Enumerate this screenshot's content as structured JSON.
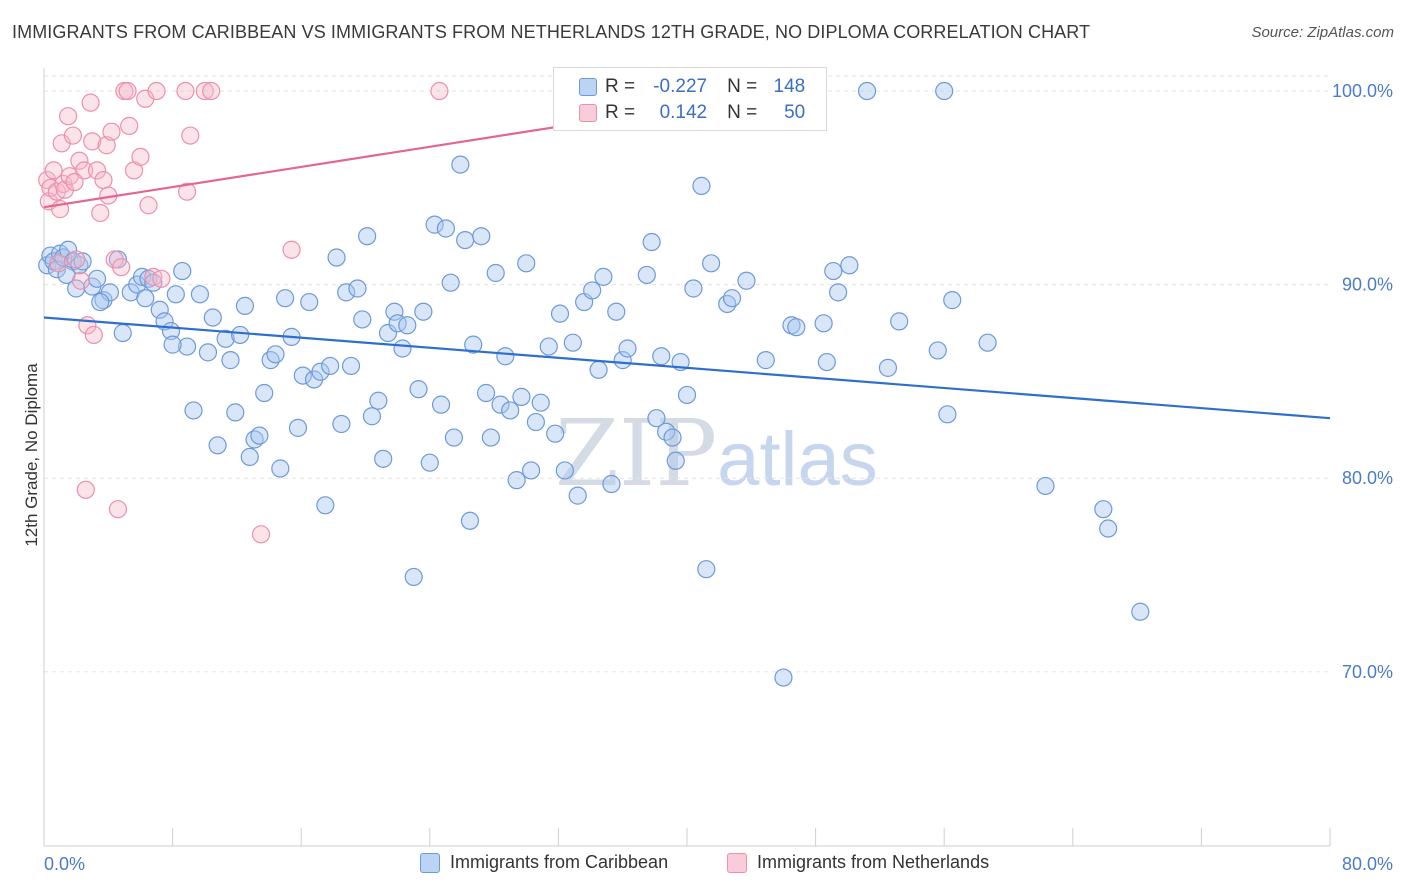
{
  "header": {
    "title": "IMMIGRANTS FROM CARIBBEAN VS IMMIGRANTS FROM NETHERLANDS 12TH GRADE, NO DIPLOMA CORRELATION CHART",
    "source": "Source: ZipAtlas.com"
  },
  "watermark": {
    "zip": "ZIP",
    "atlas": "atlas"
  },
  "legend": {
    "rows": [
      {
        "r_label": "R =",
        "r_value": "-0.227",
        "n_label": "N =",
        "n_value": "148"
      },
      {
        "r_label": "R =",
        "r_value": "0.142",
        "n_label": "N =",
        "n_value": "50"
      }
    ]
  },
  "bottom_legend": {
    "series_a": "Immigrants from Caribbean",
    "series_b": "Immigrants from Netherlands"
  },
  "colors": {
    "caribbean_fill": "#a9c7ef",
    "caribbean_stroke": "#6e9ad8",
    "caribbean_line": "#2e6fce",
    "netherlands_fill": "#f6b8cb",
    "netherlands_stroke": "#ee8fac",
    "netherlands_line": "#e4658f",
    "tick_text": "#4a7cc9",
    "grid": "#e3e3e3"
  },
  "chart_data": {
    "type": "scatter",
    "title": "IMMIGRANTS FROM CARIBBEAN VS IMMIGRANTS FROM NETHERLANDS 12TH GRADE, NO DIPLOMA CORRELATION CHART",
    "xlabel": "",
    "ylabel": "12th Grade, No Diploma",
    "xlim": [
      0,
      80
    ],
    "ylim": [
      61,
      101.5
    ],
    "x_tick_labels": [
      "0.0%",
      "80.0%"
    ],
    "y_ticks": [
      70,
      80,
      90,
      100
    ],
    "y_tick_labels": [
      "70.0%",
      "80.0%",
      "90.0%",
      "100.0%"
    ],
    "grid": true,
    "legend_position": "top-center",
    "series": [
      {
        "name": "Immigrants from Caribbean",
        "R": -0.227,
        "N": 148,
        "trend": {
          "x": [
            0,
            80
          ],
          "y": [
            88.3,
            83.1
          ]
        },
        "points": [
          [
            0.2,
            91.0
          ],
          [
            0.4,
            91.5
          ],
          [
            0.6,
            91.2
          ],
          [
            0.8,
            90.8
          ],
          [
            1.0,
            91.6
          ],
          [
            1.2,
            91.4
          ],
          [
            1.5,
            91.8
          ],
          [
            1.8,
            91.2
          ],
          [
            2.0,
            89.8
          ],
          [
            2.2,
            91.0
          ],
          [
            3.0,
            89.9
          ],
          [
            3.3,
            90.3
          ],
          [
            3.7,
            89.2
          ],
          [
            4.1,
            89.6
          ],
          [
            4.6,
            91.3
          ],
          [
            4.9,
            87.5
          ],
          [
            5.4,
            89.6
          ],
          [
            5.8,
            90.0
          ],
          [
            6.1,
            90.4
          ],
          [
            6.5,
            90.3
          ],
          [
            6.8,
            90.1
          ],
          [
            7.2,
            88.7
          ],
          [
            7.5,
            88.1
          ],
          [
            7.9,
            87.6
          ],
          [
            8.2,
            89.5
          ],
          [
            8.6,
            90.7
          ],
          [
            8.9,
            86.8
          ],
          [
            9.3,
            83.5
          ],
          [
            9.7,
            89.5
          ],
          [
            10.2,
            86.5
          ],
          [
            10.5,
            88.3
          ],
          [
            10.8,
            81.7
          ],
          [
            11.3,
            87.2
          ],
          [
            11.6,
            86.1
          ],
          [
            11.9,
            83.4
          ],
          [
            12.2,
            87.4
          ],
          [
            12.5,
            88.9
          ],
          [
            12.8,
            81.1
          ],
          [
            13.1,
            82.0
          ],
          [
            13.4,
            82.2
          ],
          [
            13.7,
            84.4
          ],
          [
            14.1,
            86.1
          ],
          [
            14.4,
            86.4
          ],
          [
            14.7,
            80.5
          ],
          [
            15.0,
            89.3
          ],
          [
            15.4,
            87.3
          ],
          [
            15.8,
            82.6
          ],
          [
            16.1,
            85.3
          ],
          [
            16.5,
            89.1
          ],
          [
            16.8,
            85.1
          ],
          [
            17.2,
            85.5
          ],
          [
            17.5,
            78.6
          ],
          [
            17.8,
            85.8
          ],
          [
            18.2,
            91.4
          ],
          [
            18.5,
            82.8
          ],
          [
            18.8,
            89.6
          ],
          [
            19.1,
            85.8
          ],
          [
            19.5,
            89.8
          ],
          [
            19.8,
            88.2
          ],
          [
            20.1,
            92.5
          ],
          [
            20.4,
            83.2
          ],
          [
            20.8,
            84.0
          ],
          [
            21.1,
            81.0
          ],
          [
            21.4,
            87.5
          ],
          [
            21.8,
            88.6
          ],
          [
            22.0,
            88.0
          ],
          [
            22.3,
            86.7
          ],
          [
            22.6,
            87.9
          ],
          [
            23.0,
            74.9
          ],
          [
            23.3,
            84.6
          ],
          [
            23.6,
            88.6
          ],
          [
            24.0,
            80.8
          ],
          [
            24.3,
            93.1
          ],
          [
            24.7,
            83.8
          ],
          [
            25.0,
            92.9
          ],
          [
            25.3,
            90.1
          ],
          [
            25.5,
            82.1
          ],
          [
            25.9,
            96.2
          ],
          [
            26.2,
            92.3
          ],
          [
            26.5,
            77.8
          ],
          [
            26.7,
            86.9
          ],
          [
            27.2,
            92.5
          ],
          [
            27.5,
            84.4
          ],
          [
            27.8,
            82.1
          ],
          [
            28.1,
            90.6
          ],
          [
            28.4,
            83.8
          ],
          [
            28.7,
            86.3
          ],
          [
            29.0,
            83.5
          ],
          [
            29.4,
            79.9
          ],
          [
            29.7,
            84.2
          ],
          [
            30.0,
            91.1
          ],
          [
            30.3,
            80.4
          ],
          [
            30.6,
            82.9
          ],
          [
            30.9,
            83.9
          ],
          [
            31.4,
            86.8
          ],
          [
            31.8,
            82.3
          ],
          [
            32.1,
            88.5
          ],
          [
            32.4,
            80.4
          ],
          [
            32.9,
            87.0
          ],
          [
            33.2,
            79.1
          ],
          [
            33.6,
            89.1
          ],
          [
            34.1,
            89.7
          ],
          [
            34.5,
            85.6
          ],
          [
            34.8,
            90.4
          ],
          [
            35.3,
            79.7
          ],
          [
            35.6,
            88.6
          ],
          [
            36.0,
            86.1
          ],
          [
            36.3,
            86.7
          ],
          [
            37.5,
            90.5
          ],
          [
            37.8,
            92.2
          ],
          [
            38.1,
            83.1
          ],
          [
            38.4,
            86.3
          ],
          [
            38.7,
            82.4
          ],
          [
            39.1,
            82.1
          ],
          [
            39.3,
            80.9
          ],
          [
            39.6,
            86.0
          ],
          [
            40.0,
            84.3
          ],
          [
            40.4,
            89.8
          ],
          [
            40.9,
            95.1
          ],
          [
            41.2,
            75.3
          ],
          [
            41.5,
            91.1
          ],
          [
            42.5,
            89.0
          ],
          [
            42.8,
            89.3
          ],
          [
            43.7,
            90.2
          ],
          [
            44.9,
            86.1
          ],
          [
            46.5,
            87.9
          ],
          [
            46.8,
            87.8
          ],
          [
            46.0,
            69.7
          ],
          [
            48.5,
            88.0
          ],
          [
            48.7,
            86.0
          ],
          [
            49.1,
            90.7
          ],
          [
            49.4,
            89.6
          ],
          [
            50.1,
            91.0
          ],
          [
            51.2,
            100.0
          ],
          [
            52.5,
            85.7
          ],
          [
            53.2,
            88.1
          ],
          [
            55.6,
            86.6
          ],
          [
            56.0,
            100.0
          ],
          [
            56.2,
            83.3
          ],
          [
            56.5,
            89.2
          ],
          [
            58.7,
            87.0
          ],
          [
            62.3,
            79.6
          ],
          [
            65.9,
            78.4
          ],
          [
            66.2,
            77.4
          ],
          [
            68.2,
            73.1
          ],
          [
            2.4,
            91.2
          ],
          [
            1.4,
            90.5
          ],
          [
            3.5,
            89.1
          ],
          [
            6.3,
            89.3
          ],
          [
            8.0,
            86.9
          ]
        ]
      },
      {
        "name": "Immigrants from Netherlands",
        "R": 0.142,
        "N": 50,
        "trend": {
          "x": [
            0,
            40
          ],
          "y": [
            94.0,
            99.2
          ]
        },
        "points": [
          [
            0.2,
            95.4
          ],
          [
            0.3,
            94.3
          ],
          [
            0.4,
            95.0
          ],
          [
            0.6,
            95.9
          ],
          [
            0.8,
            94.8
          ],
          [
            1.0,
            93.9
          ],
          [
            1.1,
            97.3
          ],
          [
            1.2,
            95.2
          ],
          [
            1.3,
            94.9
          ],
          [
            1.5,
            98.7
          ],
          [
            1.6,
            95.6
          ],
          [
            1.8,
            97.7
          ],
          [
            2.0,
            91.3
          ],
          [
            2.2,
            96.4
          ],
          [
            2.3,
            90.2
          ],
          [
            2.5,
            95.9
          ],
          [
            2.7,
            87.9
          ],
          [
            2.9,
            99.4
          ],
          [
            3.0,
            97.4
          ],
          [
            3.1,
            87.4
          ],
          [
            3.3,
            95.9
          ],
          [
            3.5,
            93.7
          ],
          [
            3.7,
            95.4
          ],
          [
            3.9,
            97.2
          ],
          [
            4.0,
            94.6
          ],
          [
            4.2,
            97.9
          ],
          [
            4.4,
            91.3
          ],
          [
            4.6,
            78.4
          ],
          [
            4.8,
            90.9
          ],
          [
            5.0,
            100.0
          ],
          [
            5.2,
            100.0
          ],
          [
            5.3,
            98.2
          ],
          [
            5.6,
            95.9
          ],
          [
            6.0,
            96.6
          ],
          [
            6.3,
            99.6
          ],
          [
            6.5,
            94.1
          ],
          [
            6.8,
            90.4
          ],
          [
            7.0,
            100.0
          ],
          [
            7.3,
            90.3
          ],
          [
            8.8,
            100.0
          ],
          [
            8.9,
            94.8
          ],
          [
            9.1,
            97.7
          ],
          [
            10.0,
            100.0
          ],
          [
            10.4,
            100.0
          ],
          [
            13.5,
            77.1
          ],
          [
            15.4,
            91.8
          ],
          [
            24.6,
            100.0
          ],
          [
            2.6,
            79.4
          ],
          [
            0.9,
            91.1
          ],
          [
            1.9,
            95.3
          ]
        ]
      }
    ]
  }
}
